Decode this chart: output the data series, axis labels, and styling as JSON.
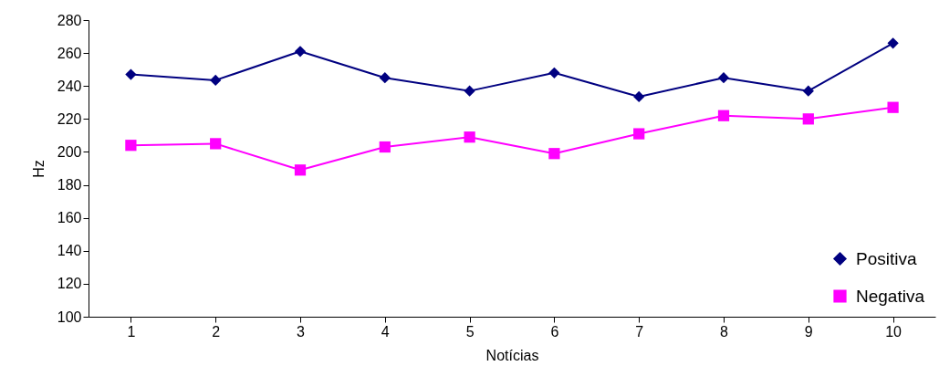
{
  "chart_data": {
    "type": "line",
    "xlabel": "Notícias",
    "ylabel": "Hz",
    "categories": [
      "1",
      "2",
      "3",
      "4",
      "5",
      "6",
      "7",
      "8",
      "9",
      "10"
    ],
    "series": [
      {
        "name": "Positiva",
        "color": "#000080",
        "marker": "diamond",
        "values": [
          247,
          243.5,
          261,
          245,
          237,
          248,
          233.5,
          245,
          237,
          266
        ]
      },
      {
        "name": "Negativa",
        "color": "#ff00ff",
        "marker": "square",
        "values": [
          204,
          205,
          189,
          203,
          209,
          199,
          211,
          222,
          220,
          227
        ]
      }
    ],
    "ylim": [
      100,
      280
    ],
    "yticks": [
      100,
      120,
      140,
      160,
      180,
      200,
      220,
      240,
      260,
      280
    ],
    "grid": false,
    "legend": "bottom right"
  }
}
